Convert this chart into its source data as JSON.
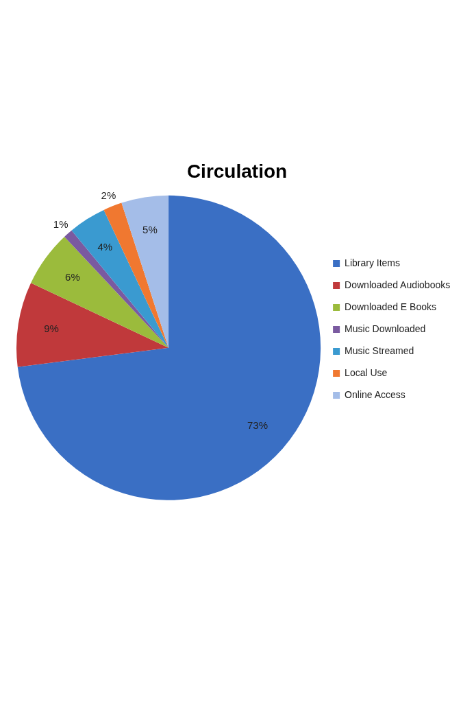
{
  "chart_data": {
    "type": "pie",
    "title": "Circulation",
    "categories": [
      "Library Items",
      "Downloaded Audiobooks",
      "Downloaded E Books",
      "Music Downloaded",
      "Music Streamed",
      "Local Use",
      "Online Access"
    ],
    "values": [
      73,
      9,
      6,
      1,
      4,
      2,
      5
    ],
    "value_labels": [
      "73%",
      "9%",
      "6%",
      "1%",
      "4%",
      "2%",
      "5%"
    ],
    "colors": [
      "#3a6fc4",
      "#c0393b",
      "#9bbb3c",
      "#7a5aa0",
      "#3a9ad0",
      "#f07830",
      "#a4bde8"
    ],
    "legend": "right"
  }
}
